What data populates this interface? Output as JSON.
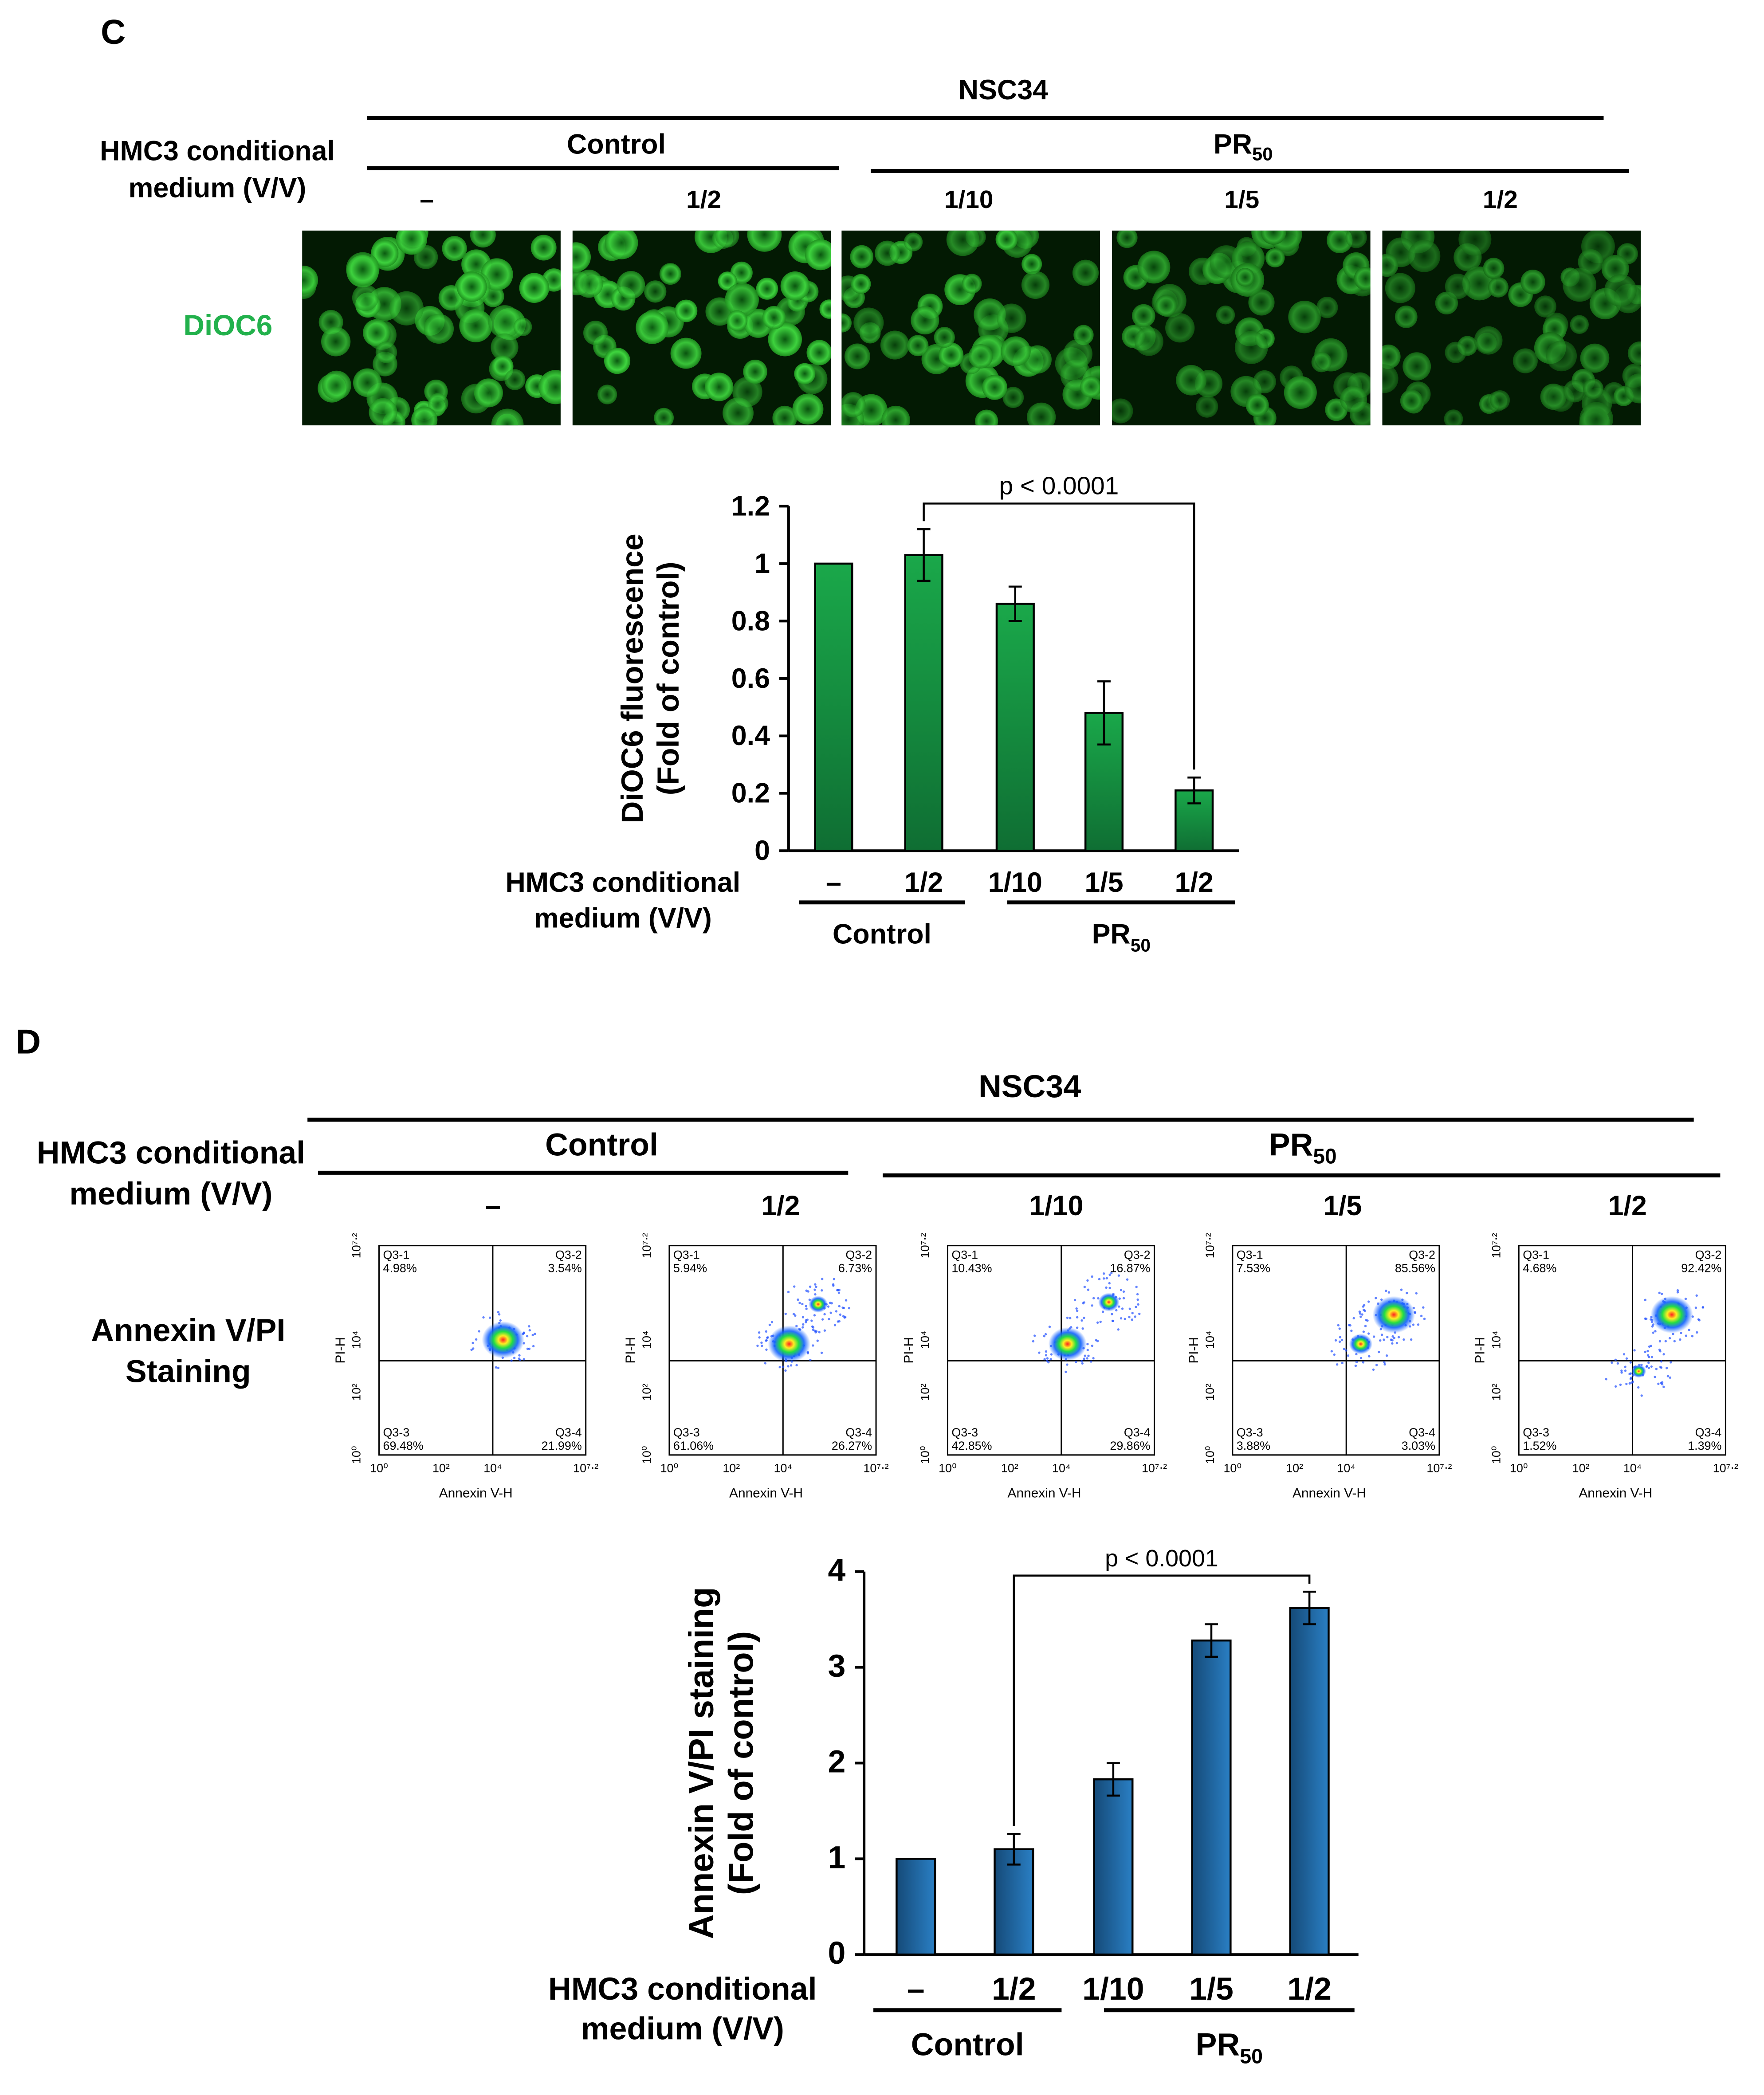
{
  "panel_c": {
    "letter": "C",
    "cell_line": "NSC34",
    "medium_label_1": "HMC3 conditional",
    "medium_label_2": "medium (V/V)",
    "group_control": "Control",
    "group_pr_base": "PR",
    "group_pr_sub": "50",
    "conditions": [
      "–",
      "1/2",
      "1/10",
      "1/5",
      "1/2"
    ],
    "stain_label": "DiOC6",
    "stain_color": "#22b14c",
    "micrograph_brightness": [
      1.0,
      1.05,
      0.85,
      0.6,
      0.42
    ]
  },
  "panel_d": {
    "letter": "D",
    "cell_line": "NSC34",
    "medium_label_1": "HMC3 conditional",
    "medium_label_2": "medium (V/V)",
    "group_control": "Control",
    "group_pr_base": "PR",
    "group_pr_sub": "50",
    "conditions": [
      "–",
      "1/2",
      "1/10",
      "1/5",
      "1/2"
    ],
    "stain_label_1": "Annexin V/PI",
    "stain_label_2": "Staining",
    "flow_plots": [
      {
        "q1": "Q3-1",
        "q1v": "4.98%",
        "q2": "Q3-2",
        "q2v": "3.54%",
        "q3": "Q3-3",
        "q3v": "69.48%",
        "q4": "Q3-4",
        "q4v": "21.99%"
      },
      {
        "q1": "Q3-1",
        "q1v": "5.94%",
        "q2": "Q3-2",
        "q2v": "6.73%",
        "q3": "Q3-3",
        "q3v": "61.06%",
        "q4": "Q3-4",
        "q4v": "26.27%"
      },
      {
        "q1": "Q3-1",
        "q1v": "10.43%",
        "q2": "Q3-2",
        "q2v": "16.87%",
        "q3": "Q3-3",
        "q3v": "42.85%",
        "q4": "Q3-4",
        "q4v": "29.86%"
      },
      {
        "q1": "Q3-1",
        "q1v": "7.53%",
        "q2": "Q3-2",
        "q2v": "85.56%",
        "q3": "Q3-3",
        "q3v": "3.88%",
        "q4": "Q3-4",
        "q4v": "3.03%"
      },
      {
        "q1": "Q3-1",
        "q1v": "4.68%",
        "q2": "Q3-2",
        "q2v": "92.42%",
        "q3": "Q3-3",
        "q3v": "1.52%",
        "q4": "Q3-4",
        "q4v": "1.39%"
      }
    ],
    "flow_x_label": "Annexin V-H",
    "flow_y_label": "PI-H",
    "flow_ticks": [
      "10⁰",
      "10²",
      "10⁴",
      "10⁷⋅²"
    ]
  },
  "chart_data": [
    {
      "type": "bar",
      "ylabel_1": "DiOC6  fluorescence",
      "ylabel_2": "(Fold of control)",
      "categories": [
        "–",
        "1/2",
        "1/10",
        "1/5",
        "1/2"
      ],
      "values": [
        1.0,
        1.03,
        0.86,
        0.48,
        0.21
      ],
      "errors": [
        0,
        0.09,
        0.06,
        0.11,
        0.045
      ],
      "ylim": [
        0,
        1.2
      ],
      "yticks": [
        "0",
        "0.2",
        "0.4",
        "0.6",
        "0.8",
        "1",
        "1.2"
      ],
      "significance": "p < 0.0001",
      "bar_color_top": "#1aa84a",
      "bar_color_bottom": "#0f6e33"
    },
    {
      "type": "bar",
      "ylabel_1": "Annexin V/PI staining",
      "ylabel_2": "(Fold of control)",
      "categories": [
        "–",
        "1/2",
        "1/10",
        "1/5",
        "1/2"
      ],
      "values": [
        1.0,
        1.1,
        1.83,
        3.28,
        3.62
      ],
      "errors": [
        0,
        0.16,
        0.17,
        0.17,
        0.17
      ],
      "ylim": [
        0,
        4
      ],
      "yticks": [
        "0",
        "1",
        "2",
        "3",
        "4"
      ],
      "significance": "p < 0.0001",
      "bar_color_top": "#2a7fc4",
      "bar_color_bottom": "#154a78"
    }
  ]
}
